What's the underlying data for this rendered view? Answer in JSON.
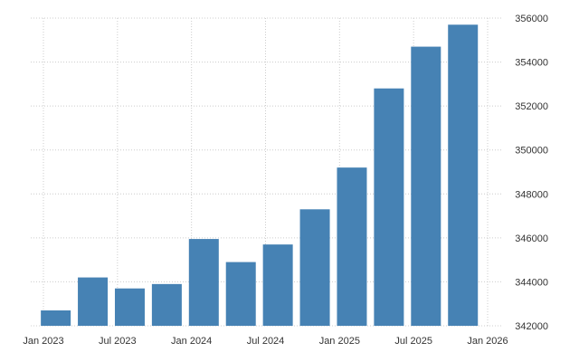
{
  "chart_data": {
    "type": "bar",
    "categories": [
      "Feb 2023",
      "May 2023",
      "Aug 2023",
      "Nov 2023",
      "Feb 2024",
      "May 2024",
      "Aug 2024",
      "Nov 2024",
      "Feb 2025",
      "May 2025",
      "Aug 2025",
      "Nov 2025"
    ],
    "values": [
      342700,
      344200,
      343700,
      343900,
      345950,
      344900,
      345700,
      347300,
      349200,
      352800,
      354700,
      355700
    ],
    "title": "",
    "xlabel": "",
    "ylabel": "",
    "ylim": [
      342000,
      356000
    ],
    "x_tick_labels": [
      "Jan 2023",
      "Jul 2023",
      "Jan 2024",
      "Jul 2024",
      "Jan 2025",
      "Jul 2025",
      "Jan 2026"
    ],
    "y_tick_labels": [
      "342000",
      "344000",
      "346000",
      "348000",
      "350000",
      "352000",
      "354000",
      "356000"
    ],
    "y_ticks": [
      342000,
      344000,
      346000,
      348000,
      350000,
      352000,
      354000,
      356000
    ],
    "grid": true,
    "y_axis_side": "right",
    "bar_color": "#4682b4"
  }
}
